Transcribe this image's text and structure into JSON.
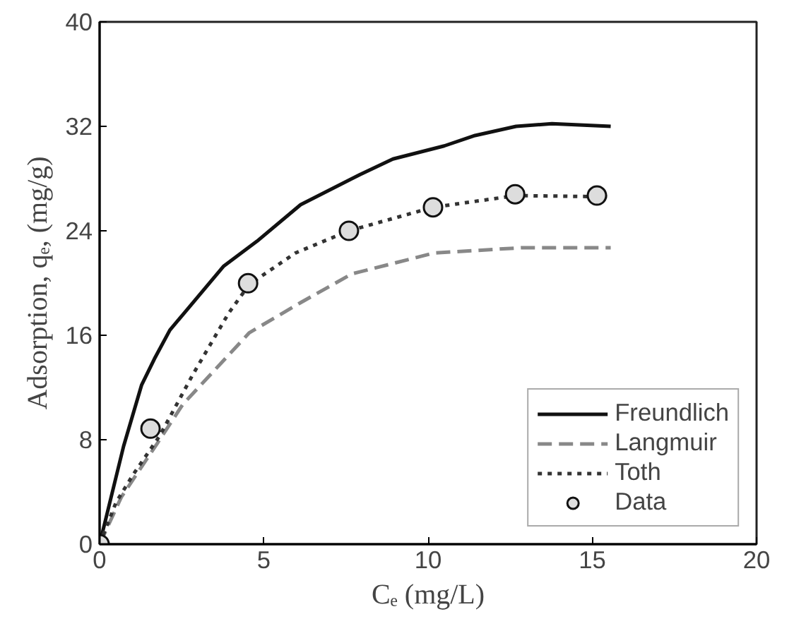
{
  "chart_data": {
    "type": "line",
    "xlabel": "Cₑ (mg/L)",
    "ylabel": "Adsorption, qₑ, (mg/g)",
    "xlim": [
      0,
      20
    ],
    "ylim": [
      0,
      40
    ],
    "xticks": [
      0,
      5,
      10,
      15,
      20
    ],
    "yticks": [
      0,
      8,
      16,
      24,
      32,
      40
    ],
    "grid": false,
    "legend": "bottom right",
    "series": [
      {
        "name": "Freundlich",
        "color": "#111111",
        "line_style": "solid",
        "x": [
          0,
          0.73,
          1.28,
          1.67,
          2.14,
          3.78,
          4.79,
          6.12,
          7.92,
          8.93,
          10.49,
          11.43,
          12.68,
          13.77,
          15.56
        ],
        "values": [
          0,
          7.5,
          12.2,
          14.2,
          16.4,
          21.3,
          23.2,
          26.0,
          28.3,
          29.5,
          30.5,
          31.3,
          32.0,
          32.2,
          32.0
        ]
      },
      {
        "name": "Langmuir",
        "color": "#888888",
        "line_style": "dashed",
        "x": [
          0,
          0.66,
          1.75,
          2.53,
          4.56,
          6.12,
          7.68,
          10.18,
          12.83,
          15.56
        ],
        "values": [
          0,
          3.6,
          7.7,
          10.7,
          16.2,
          18.5,
          20.7,
          22.3,
          22.7,
          22.7
        ]
      },
      {
        "name": "Toth",
        "color": "#333333",
        "line_style": "dotted",
        "x": [
          0,
          0.5,
          1.04,
          1.83,
          2.84,
          3.93,
          4.56,
          5.96,
          7.59,
          10.15,
          12.68,
          15.56
        ],
        "values": [
          0,
          3.2,
          5.4,
          8.3,
          13.0,
          17.7,
          19.9,
          22.3,
          24.0,
          25.8,
          26.7,
          26.6
        ]
      },
      {
        "name": "Data",
        "type": "scatter",
        "marker": "circle",
        "color": "#111111",
        "x": [
          0,
          1.55,
          4.52,
          7.59,
          10.15,
          12.65,
          15.14
        ],
        "values": [
          0,
          8.85,
          19.98,
          24.0,
          25.8,
          26.8,
          26.7
        ]
      }
    ]
  }
}
